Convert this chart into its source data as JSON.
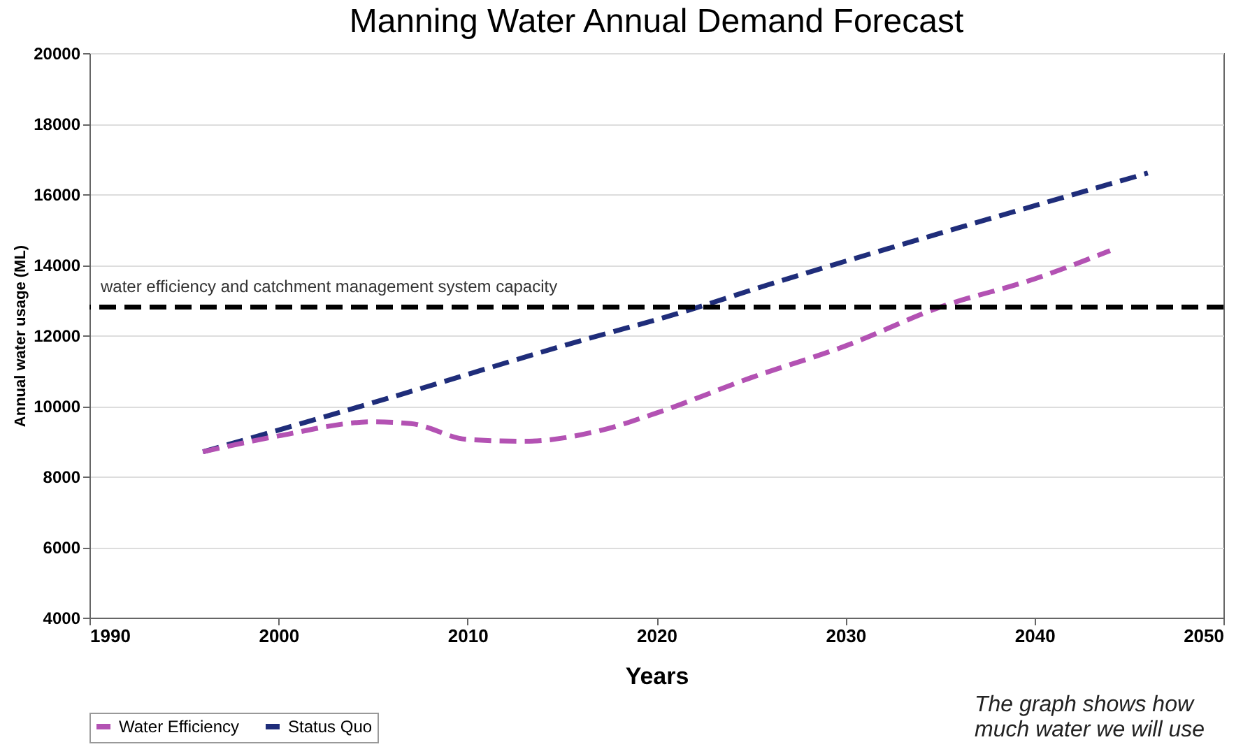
{
  "chart_data": {
    "type": "line",
    "title": "Manning Water Annual Demand Forecast",
    "xlabel": "Years",
    "ylabel": "Annual water usage (ML)",
    "xlim": [
      1990,
      2050
    ],
    "xticks": [
      1990,
      2000,
      2010,
      2020,
      2030,
      2040,
      2050
    ],
    "ylim": [
      4000,
      20000
    ],
    "yticks": [
      4000,
      6000,
      8000,
      10000,
      12000,
      14000,
      16000,
      18000,
      20000
    ],
    "grid": "y",
    "legend": "bottom",
    "line_style": "dashed",
    "marker": "none",
    "series": [
      {
        "name": "Water Efficiency",
        "color": "#b352b3",
        "x": [
          1996,
          2000,
          2005,
          2007,
          2010,
          2013,
          2017,
          2020,
          2025,
          2030,
          2035,
          2040,
          2044
        ],
        "values": [
          8700,
          9150,
          9550,
          9500,
          9050,
          9000,
          9300,
          9800,
          10800,
          11700,
          12800,
          13600,
          14400
        ]
      },
      {
        "name": "Status Quo",
        "color": "#1f2d7a",
        "x": [
          1996,
          2006,
          2016,
          2021,
          2026,
          2036,
          2046
        ],
        "values": [
          8700,
          10250,
          11850,
          12600,
          13450,
          15050,
          16600
        ]
      }
    ],
    "ref_lines": [
      {
        "axis": "y",
        "value": 12800,
        "label": "water efficiency and catchment management system capacity",
        "color": "#000000",
        "line_style": "dashed"
      }
    ],
    "annotations": [
      "The graph shows how much water we will use"
    ]
  }
}
